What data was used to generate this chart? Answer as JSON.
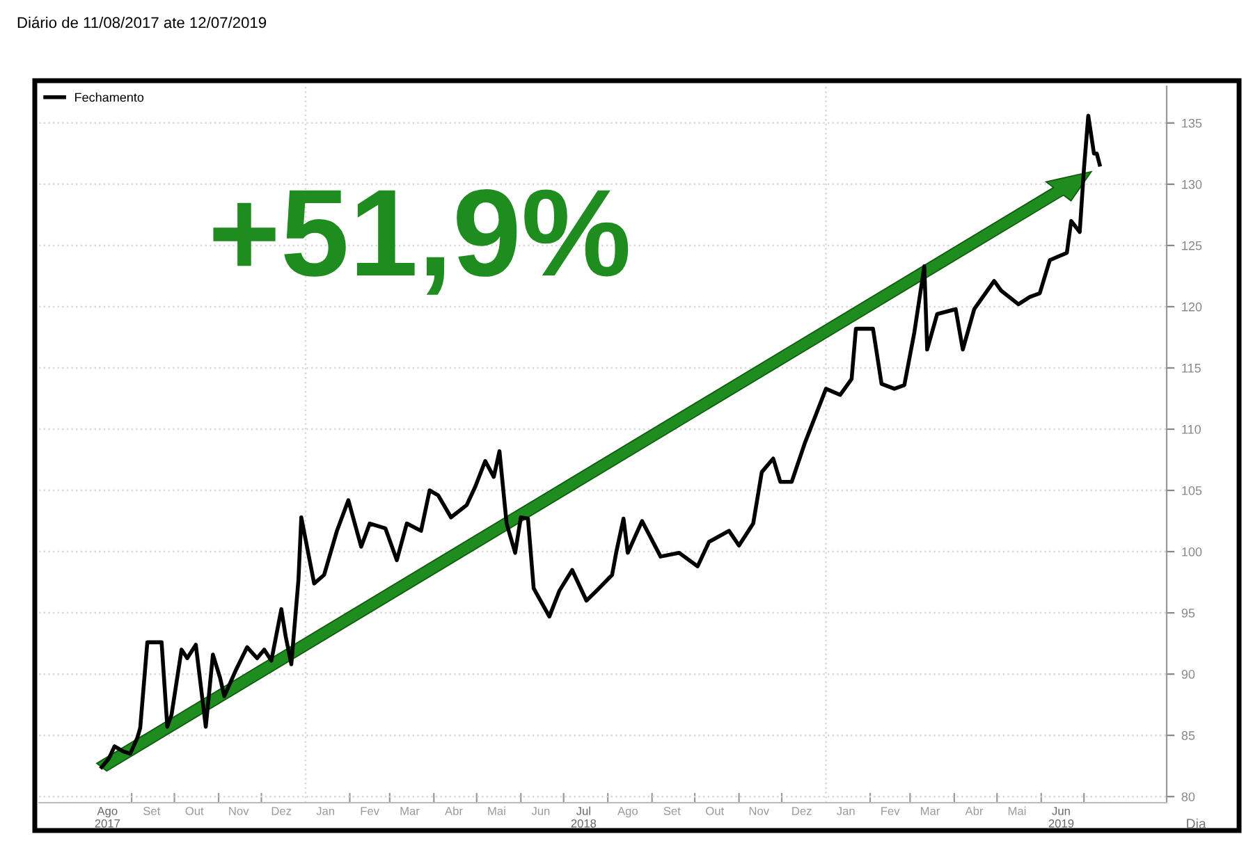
{
  "chart_data": {
    "type": "line",
    "title": "Diário de 11/08/2017 ate 12/07/2019",
    "xlabel": "Dia",
    "annotations": [
      "+51,9%"
    ],
    "legend": "top left",
    "grid": "y",
    "marker": "none",
    "line_style": "solid",
    "xlim": [
      "2017-06-28",
      "2019-08-28"
    ],
    "ylim": [
      79.5,
      138
    ],
    "yticks": [
      80,
      85,
      90,
      95,
      100,
      105,
      110,
      115,
      120,
      125,
      130,
      135
    ],
    "xticks": [
      {
        "value": "2017-08-15",
        "label": "Ago\n2017"
      },
      {
        "value": "2017-09-01",
        "label": null
      },
      {
        "value": "2017-09-15",
        "label": "Set"
      },
      {
        "value": "2017-10-01",
        "label": null
      },
      {
        "value": "2017-10-15",
        "label": "Out"
      },
      {
        "value": "2017-11-01",
        "label": null
      },
      {
        "value": "2017-11-15",
        "label": "Nov"
      },
      {
        "value": "2017-12-01",
        "label": null
      },
      {
        "value": "2017-12-15",
        "label": "Dez"
      },
      {
        "value": "2018-01-15",
        "label": "Jan"
      },
      {
        "value": "2018-02-01",
        "label": null
      },
      {
        "value": "2018-02-15",
        "label": "Fev"
      },
      {
        "value": "2018-03-01",
        "label": null
      },
      {
        "value": "2018-03-15",
        "label": "Mar"
      },
      {
        "value": "2018-04-01",
        "label": null
      },
      {
        "value": "2018-04-15",
        "label": "Abr"
      },
      {
        "value": "2018-05-01",
        "label": null
      },
      {
        "value": "2018-05-15",
        "label": "Mai"
      },
      {
        "value": "2018-06-01",
        "label": null
      },
      {
        "value": "2018-06-15",
        "label": "Jun"
      },
      {
        "value": "2018-07-01",
        "label": null
      },
      {
        "value": "2018-07-15",
        "label": "Jul\n2018"
      },
      {
        "value": "2018-08-01",
        "label": null
      },
      {
        "value": "2018-08-15",
        "label": "Ago"
      },
      {
        "value": "2018-09-01",
        "label": null
      },
      {
        "value": "2018-09-15",
        "label": "Set"
      },
      {
        "value": "2018-10-01",
        "label": null
      },
      {
        "value": "2018-10-15",
        "label": "Out"
      },
      {
        "value": "2018-11-01",
        "label": null
      },
      {
        "value": "2018-11-15",
        "label": "Nov"
      },
      {
        "value": "2018-12-01",
        "label": null
      },
      {
        "value": "2018-12-15",
        "label": "Dez"
      },
      {
        "value": "2019-01-15",
        "label": "Jan"
      },
      {
        "value": "2019-02-01",
        "label": null
      },
      {
        "value": "2019-02-15",
        "label": "Fev"
      },
      {
        "value": "2019-03-01",
        "label": null
      },
      {
        "value": "2019-03-15",
        "label": "Mar"
      },
      {
        "value": "2019-04-01",
        "label": null
      },
      {
        "value": "2019-04-15",
        "label": "Abr"
      },
      {
        "value": "2019-05-01",
        "label": null
      },
      {
        "value": "2019-05-15",
        "label": "Mai"
      },
      {
        "value": "2019-06-01",
        "label": null
      },
      {
        "value": "2019-06-15",
        "label": "Jun\n2019"
      },
      {
        "value": "2019-07-01",
        "label": null
      }
    ],
    "ref_lines": [
      {
        "axis": "x",
        "value": "2018-01-01",
        "label": null,
        "color": "#d9d9d9",
        "line_style": "dotted"
      },
      {
        "axis": "x",
        "value": "2019-01-01",
        "label": null,
        "color": "#d9d9d9",
        "line_style": "dotted"
      }
    ],
    "series": [
      {
        "name": "Fechamento",
        "color": "#000000",
        "x": [
          "2017-08-11",
          "2017-08-16",
          "2017-08-20",
          "2017-08-26",
          "2017-08-31",
          "2017-09-05",
          "2017-09-07",
          "2017-09-12",
          "2017-09-22",
          "2017-09-26",
          "2017-09-29",
          "2017-10-06",
          "2017-10-10",
          "2017-10-16",
          "2017-10-23",
          "2017-10-28",
          "2017-11-02",
          "2017-11-05",
          "2017-11-13",
          "2017-11-21",
          "2017-11-28",
          "2017-12-03",
          "2017-12-08",
          "2017-12-15",
          "2017-12-18",
          "2017-12-22",
          "2017-12-27",
          "2017-12-29",
          "2018-01-07",
          "2018-01-14",
          "2018-01-23",
          "2018-01-31",
          "2018-02-09",
          "2018-02-15",
          "2018-02-26",
          "2018-03-06",
          "2018-03-13",
          "2018-03-23",
          "2018-03-29",
          "2018-04-04",
          "2018-04-13",
          "2018-04-24",
          "2018-04-30",
          "2018-05-07",
          "2018-05-13",
          "2018-05-17",
          "2018-05-22",
          "2018-05-28",
          "2018-06-01",
          "2018-06-06",
          "2018-06-10",
          "2018-06-21",
          "2018-06-28",
          "2018-07-07",
          "2018-07-17",
          "2018-07-24",
          "2018-08-04",
          "2018-08-07",
          "2018-08-12",
          "2018-08-15",
          "2018-08-25",
          "2018-09-07",
          "2018-09-20",
          "2018-10-03",
          "2018-10-11",
          "2018-10-25",
          "2018-11-01",
          "2018-11-11",
          "2018-11-17",
          "2018-11-25",
          "2018-11-30",
          "2018-12-08",
          "2018-12-17",
          "2018-12-22",
          "2019-01-01",
          "2019-01-11",
          "2019-01-19",
          "2019-01-22",
          "2019-02-03",
          "2019-02-09",
          "2019-02-18",
          "2019-02-25",
          "2019-03-04",
          "2019-03-11",
          "2019-03-13",
          "2019-03-20",
          "2019-04-02",
          "2019-04-07",
          "2019-04-15",
          "2019-04-29",
          "2019-05-04",
          "2019-05-16",
          "2019-05-24",
          "2019-05-31",
          "2019-06-07",
          "2019-06-19",
          "2019-06-22",
          "2019-06-28",
          "2019-07-01",
          "2019-07-04",
          "2019-07-08",
          "2019-07-10",
          "2019-07-12"
        ],
        "values": [
          82.4,
          83.1,
          84.1,
          83.7,
          83.5,
          84.8,
          85.6,
          92.6,
          92.6,
          85.7,
          86.7,
          92.0,
          91.3,
          92.4,
          85.7,
          91.6,
          89.7,
          88.2,
          90.3,
          92.2,
          91.3,
          92.0,
          91.1,
          95.3,
          93.1,
          90.8,
          97.7,
          102.8,
          97.4,
          98.1,
          101.7,
          104.2,
          100.4,
          102.3,
          101.9,
          99.3,
          102.3,
          101.7,
          105.0,
          104.6,
          102.8,
          103.8,
          105.3,
          107.4,
          106.1,
          108.2,
          102.3,
          99.9,
          102.8,
          102.7,
          97.0,
          94.7,
          96.8,
          98.5,
          96.0,
          96.8,
          98.1,
          100.0,
          102.7,
          99.9,
          102.5,
          99.6,
          99.9,
          98.8,
          100.8,
          101.7,
          100.5,
          102.3,
          106.5,
          107.6,
          105.7,
          105.7,
          108.8,
          110.3,
          113.3,
          112.8,
          114.1,
          118.2,
          118.2,
          113.7,
          113.3,
          113.6,
          117.9,
          123.3,
          116.5,
          119.4,
          119.8,
          116.5,
          119.8,
          122.1,
          121.3,
          120.2,
          120.8,
          121.1,
          123.8,
          124.4,
          127.0,
          126.1,
          131.3,
          135.6,
          132.5,
          132.5,
          131.6
        ]
      }
    ]
  }
}
